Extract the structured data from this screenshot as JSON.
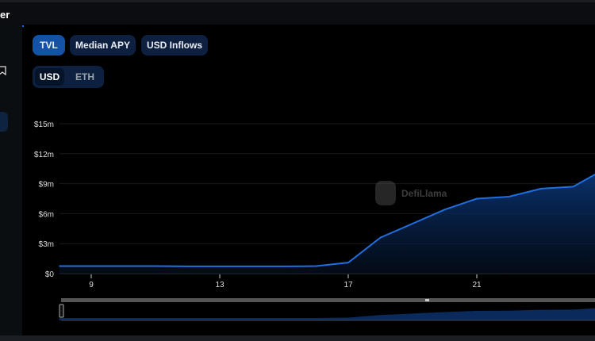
{
  "tab": {
    "label": "er"
  },
  "metric_buttons": [
    {
      "label": "TVL",
      "active": true
    },
    {
      "label": "Median APY",
      "active": false
    },
    {
      "label": "USD Inflows",
      "active": false
    }
  ],
  "currency_toggle": [
    {
      "label": "USD",
      "active": true
    },
    {
      "label": "ETH",
      "active": false
    }
  ],
  "watermark": "DefiLlama",
  "colors": {
    "line": "#1f6fe0",
    "accent": "#1452a5"
  },
  "chart_data": {
    "type": "area",
    "title": "",
    "xlabel": "",
    "ylabel": "",
    "x": [
      8,
      9,
      10,
      11,
      12,
      13,
      14,
      15,
      16,
      17,
      18,
      19,
      20,
      21,
      22,
      23,
      24,
      25
    ],
    "series": [
      {
        "values": [
          0.75,
          0.75,
          0.75,
          0.75,
          0.72,
          0.72,
          0.72,
          0.72,
          0.75,
          1.1,
          3.6,
          5.0,
          6.4,
          7.5,
          7.7,
          8.5,
          8.7,
          10.5
        ]
      }
    ],
    "y_unit": "$m",
    "ylim": [
      0,
      15
    ],
    "yticks": [
      "$0",
      "$3m",
      "$6m",
      "$9m",
      "$12m",
      "$15m"
    ],
    "ytick_values": [
      0,
      3,
      6,
      9,
      12,
      15
    ],
    "xticks": [
      "9",
      "13",
      "17",
      "21"
    ],
    "xtick_values": [
      9,
      13,
      17,
      21
    ],
    "grid": true,
    "legend": "none"
  }
}
